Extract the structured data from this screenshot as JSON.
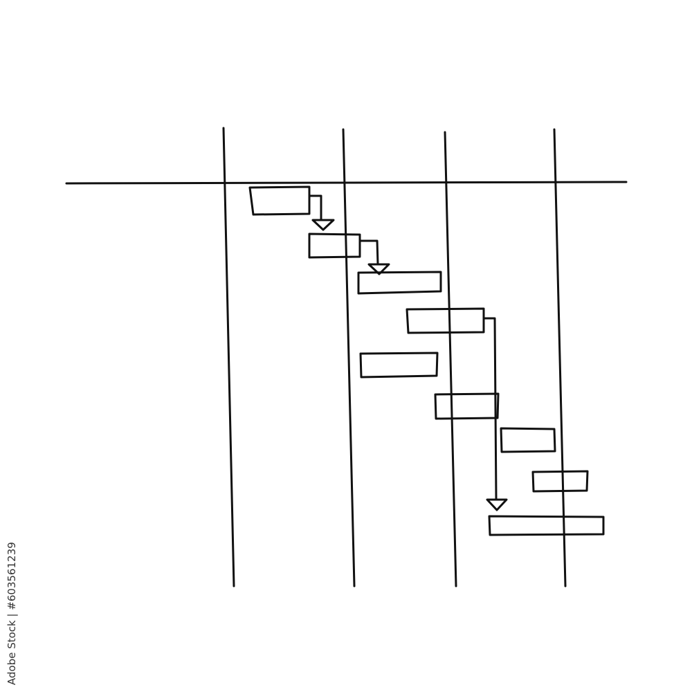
{
  "diagram": {
    "type": "hand-drawn gantt chart",
    "ink_color": "#111111",
    "background": "#ffffff",
    "columns": 4,
    "task_bars": 9,
    "dependency_arrows": 3
  },
  "watermark": {
    "text": "Adobe Stock | #603561239"
  }
}
